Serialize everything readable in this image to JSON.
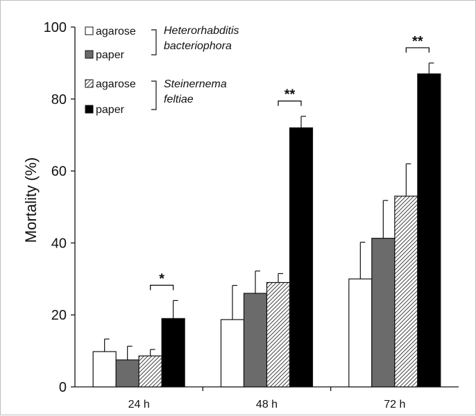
{
  "chart_data": {
    "type": "bar",
    "title": "",
    "xlabel": "",
    "ylabel": "Mortality (%)",
    "ylim": [
      0,
      100
    ],
    "yticks": [
      "0",
      "20",
      "40",
      "60",
      "80",
      "100"
    ],
    "categories": [
      "24 h",
      "48 h",
      "72 h"
    ],
    "series": [
      {
        "name": "agarose",
        "group": "Heterorhabditis bacteriophora",
        "fill": "white",
        "color": "#ffffff",
        "values": [
          9.8,
          18.7,
          30.0
        ],
        "errors": [
          3.5,
          9.5,
          10.2
        ]
      },
      {
        "name": "paper",
        "group": "Heterorhabditis bacteriophora",
        "fill": "solid",
        "color": "#6b6b6b",
        "values": [
          7.5,
          26.0,
          41.3
        ],
        "errors": [
          3.8,
          6.2,
          10.5
        ]
      },
      {
        "name": "agarose",
        "group": "Steinernema feltiae",
        "fill": "hatched",
        "color": "#ffffff",
        "values": [
          8.6,
          29.0,
          53.0
        ],
        "errors": [
          1.8,
          2.5,
          9.0
        ]
      },
      {
        "name": "paper",
        "group": "Steinernema feltiae",
        "fill": "solid",
        "color": "#000000",
        "values": [
          19.0,
          72.0,
          87.0
        ],
        "errors": [
          5.0,
          3.2,
          3.0
        ]
      }
    ],
    "significance": [
      {
        "category": "24 h",
        "label": "*"
      },
      {
        "category": "48 h",
        "label": "**"
      },
      {
        "category": "72 h",
        "label": "**"
      }
    ],
    "legend": {
      "placement": "top-left",
      "groups": [
        {
          "species": [
            "Heterorhabditis",
            "bacteriophora"
          ],
          "items": [
            "agarose",
            "paper"
          ]
        },
        {
          "species": [
            "Steinernema",
            "feltiae"
          ],
          "items": [
            "agarose",
            "paper"
          ]
        }
      ]
    },
    "grid": false
  }
}
